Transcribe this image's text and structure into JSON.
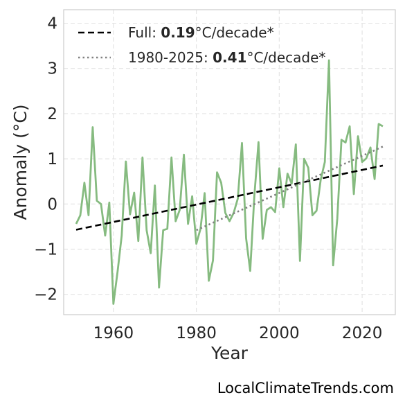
{
  "chart_data": {
    "type": "line",
    "xlabel": "Year",
    "ylabel": "Anomaly (°C)",
    "xlim": [
      1948,
      2028
    ],
    "ylim": [
      -2.45,
      4.3
    ],
    "x_ticks": [
      1960,
      1980,
      2000,
      2020
    ],
    "y_ticks": [
      -2,
      -1,
      0,
      1,
      2,
      3,
      4
    ],
    "y_tick_labels": [
      "−2",
      "−1",
      "0",
      "1",
      "2",
      "3",
      "4"
    ],
    "grid": true,
    "legend_position": "top-left",
    "series": [
      {
        "color": "#86bb80",
        "x": [
          1951,
          1952,
          1953,
          1954,
          1955,
          1956,
          1957,
          1958,
          1959,
          1960,
          1961,
          1962,
          1963,
          1964,
          1965,
          1966,
          1967,
          1968,
          1969,
          1970,
          1971,
          1972,
          1973,
          1974,
          1975,
          1976,
          1977,
          1978,
          1979,
          1980,
          1981,
          1982,
          1983,
          1984,
          1985,
          1986,
          1987,
          1988,
          1989,
          1990,
          1991,
          1992,
          1993,
          1994,
          1995,
          1996,
          1997,
          1998,
          1999,
          2000,
          2001,
          2002,
          2003,
          2004,
          2005,
          2006,
          2007,
          2008,
          2009,
          2010,
          2011,
          2012,
          2013,
          2014,
          2015,
          2016,
          2017,
          2018,
          2019,
          2020,
          2021,
          2022,
          2023,
          2024,
          2025
        ],
        "y": [
          -0.44,
          -0.25,
          0.47,
          -0.25,
          1.7,
          0.07,
          0.0,
          -0.7,
          0.03,
          -2.21,
          -1.5,
          -0.7,
          0.94,
          -0.23,
          0.25,
          -0.82,
          1.03,
          -0.58,
          -1.09,
          0.41,
          -1.85,
          -0.58,
          -0.55,
          1.03,
          -0.38,
          -0.13,
          1.09,
          -0.44,
          0.17,
          -0.88,
          -0.55,
          0.24,
          -1.7,
          -1.25,
          0.7,
          0.47,
          -0.2,
          -0.38,
          -0.2,
          0.12,
          1.35,
          -0.76,
          -1.48,
          0.18,
          1.37,
          -0.77,
          -0.13,
          -0.07,
          -0.18,
          0.79,
          -0.07,
          0.67,
          0.45,
          1.32,
          -1.26,
          1.0,
          0.8,
          -0.25,
          -0.15,
          0.53,
          0.93,
          3.18,
          -1.36,
          -0.32,
          1.42,
          1.36,
          1.72,
          0.22,
          1.5,
          0.93,
          1.01,
          1.25,
          0.55,
          1.77,
          1.72
        ]
      },
      {
        "name": "Full",
        "style": "dashed",
        "color": "#000000",
        "x": [
          1951,
          2025
        ],
        "y": [
          -0.57,
          0.85
        ]
      },
      {
        "name": "1980-2025",
        "style": "dotted",
        "color": "#808080",
        "x": [
          1980,
          2025
        ],
        "y": [
          -0.58,
          1.27
        ]
      }
    ],
    "legend": [
      {
        "prefix": "Full: ",
        "value": "0.19",
        "suffix": "°C/decade*"
      },
      {
        "prefix": "1980-2025: ",
        "value": "0.41",
        "suffix": "°C/decade*"
      }
    ]
  },
  "watermark": "LocalClimateTrends.com"
}
